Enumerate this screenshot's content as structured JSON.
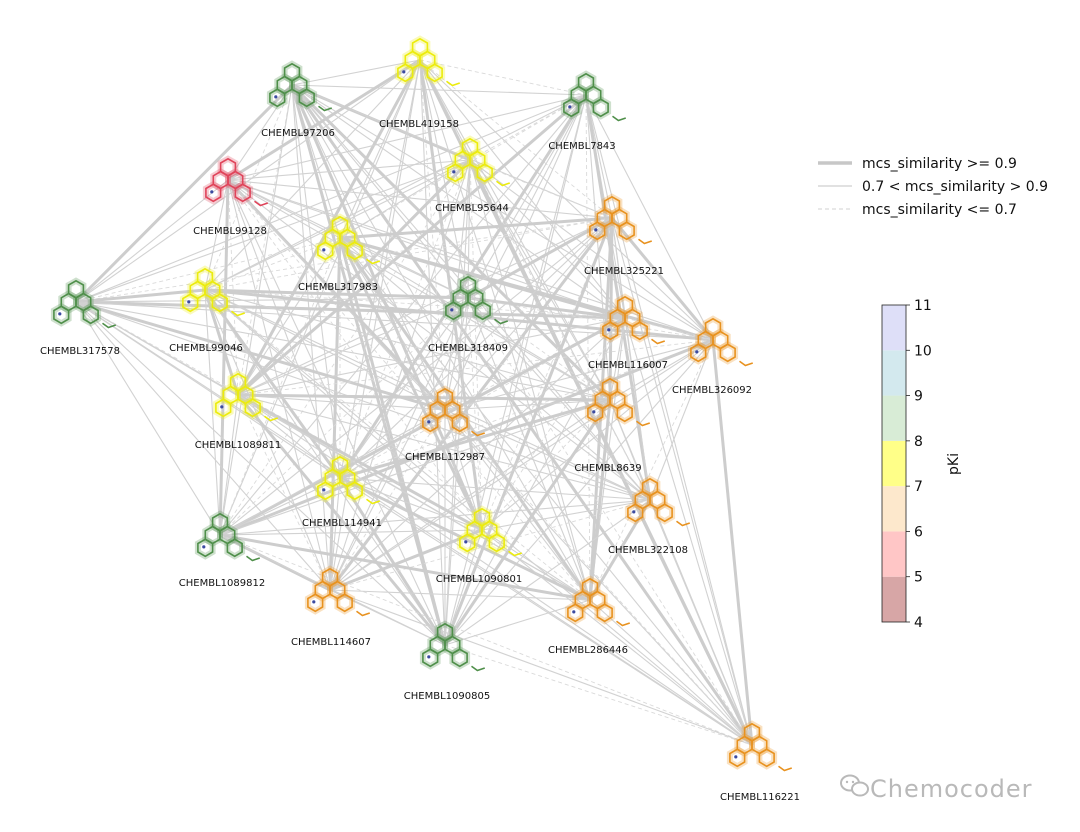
{
  "chart_data": {
    "type": "network",
    "legend": {
      "strong": "mcs_similarity >= 0.9",
      "medium": "0.7 < mcs_similarity > 0.9",
      "weak": "mcs_similarity <= 0.7"
    },
    "colorbar": {
      "label": "pKi",
      "min": 4,
      "max": 11,
      "ticks": [
        "4",
        "5",
        "6",
        "7",
        "8",
        "9",
        "10",
        "11"
      ],
      "colors": [
        "#d7a6a6",
        "#ffc6c6",
        "#fde8cc",
        "#ffff88",
        "#d8ecd6",
        "#d3e9ee",
        "#dedff8"
      ]
    },
    "node_colors": {
      "red": "#e0445a",
      "orange": "#e8921f",
      "yellow": "#ecec0c",
      "green": "#4f8f4a"
    },
    "nodes": [
      {
        "id": "CHEMBL97206",
        "color": "green"
      },
      {
        "id": "CHEMBL419158",
        "color": "yellow"
      },
      {
        "id": "CHEMBL7843",
        "color": "green"
      },
      {
        "id": "CHEMBL95644",
        "color": "yellow"
      },
      {
        "id": "CHEMBL99128",
        "color": "red"
      },
      {
        "id": "CHEMBL317983",
        "color": "yellow"
      },
      {
        "id": "CHEMBL325221",
        "color": "orange"
      },
      {
        "id": "CHEMBL317578",
        "color": "green"
      },
      {
        "id": "CHEMBL99046",
        "color": "yellow"
      },
      {
        "id": "CHEMBL318409",
        "color": "green"
      },
      {
        "id": "CHEMBL116007",
        "color": "orange"
      },
      {
        "id": "CHEMBL326092",
        "color": "orange"
      },
      {
        "id": "CHEMBL1089811",
        "color": "yellow"
      },
      {
        "id": "CHEMBL112987",
        "color": "orange"
      },
      {
        "id": "CHEMBL8639",
        "color": "orange"
      },
      {
        "id": "CHEMBL114941",
        "color": "yellow"
      },
      {
        "id": "CHEMBL322108",
        "color": "orange"
      },
      {
        "id": "CHEMBL1089812",
        "color": "green"
      },
      {
        "id": "CHEMBL1090801",
        "color": "yellow"
      },
      {
        "id": "CHEMBL114607",
        "color": "orange"
      },
      {
        "id": "CHEMBL286446",
        "color": "orange"
      },
      {
        "id": "CHEMBL1090805",
        "color": "green"
      },
      {
        "id": "CHEMBL116221",
        "color": "orange"
      }
    ]
  },
  "watermark": {
    "text": "Chemocoder"
  }
}
